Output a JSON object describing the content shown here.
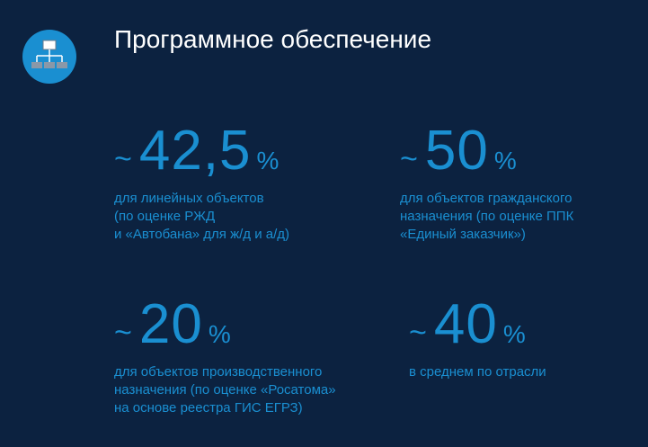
{
  "title": "Программное обеспечение",
  "icon": "network-hierarchy-icon",
  "colors": {
    "background": "#0c2240",
    "accent": "#1a8fd1",
    "title": "#ffffff"
  },
  "stats": [
    {
      "tilde": "~",
      "value": "42,5",
      "unit": "%",
      "desc": [
        "для линейных объектов",
        "(по оценке РЖД",
        "и «Автобана» для ж/д и а/д)"
      ]
    },
    {
      "tilde": "~",
      "value": "50",
      "unit": "%",
      "desc": [
        "для объектов гражданского",
        "назначения (по оценке ППК",
        "«Единый заказчик»)"
      ]
    },
    {
      "tilde": "~",
      "value": "20",
      "unit": "%",
      "desc": [
        "для объектов производственного",
        "назначения (по оценке «Росатома»",
        "на основе реестра ГИС ЕГРЗ)"
      ]
    },
    {
      "tilde": "~",
      "value": "40",
      "unit": "%",
      "desc": [
        "в среднем по отрасли"
      ]
    }
  ]
}
